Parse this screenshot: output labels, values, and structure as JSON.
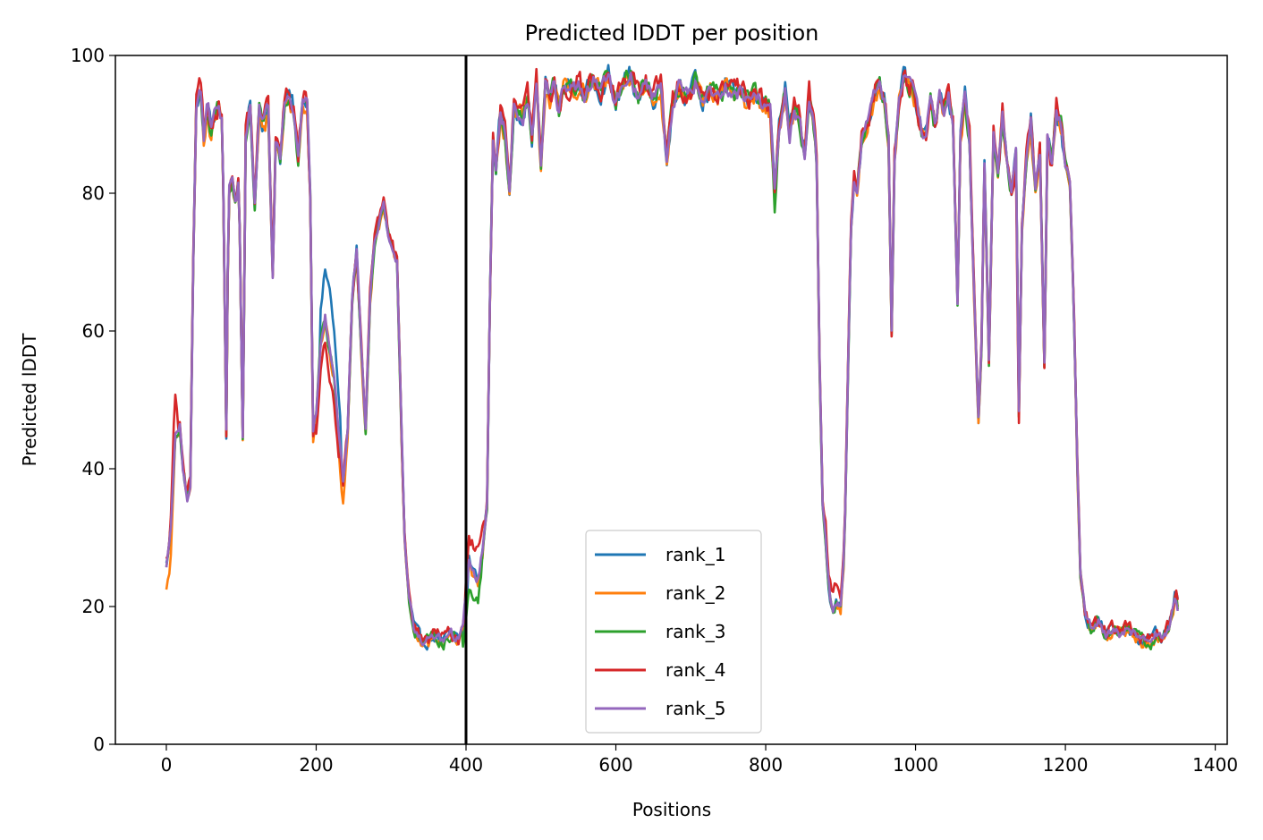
{
  "chart_data": {
    "type": "line",
    "title": "Predicted lDDT per position",
    "xlabel": "Positions",
    "ylabel": "Predicted lDDT",
    "xlim": [
      -68,
      1416
    ],
    "ylim": [
      0,
      100
    ],
    "xticks": [
      0,
      200,
      400,
      600,
      800,
      1000,
      1200,
      1400
    ],
    "yticks": [
      0,
      20,
      40,
      60,
      80,
      100
    ],
    "vline": 400,
    "legend_position": "bottom-center",
    "grid": false,
    "base_profile": [
      [
        0,
        26
      ],
      [
        5,
        30
      ],
      [
        12,
        45
      ],
      [
        18,
        46
      ],
      [
        22,
        40
      ],
      [
        28,
        36
      ],
      [
        32,
        38
      ],
      [
        36,
        70
      ],
      [
        40,
        93
      ],
      [
        45,
        95
      ],
      [
        50,
        88
      ],
      [
        55,
        93
      ],
      [
        60,
        89
      ],
      [
        65,
        92
      ],
      [
        70,
        93
      ],
      [
        75,
        90
      ],
      [
        80,
        45
      ],
      [
        83,
        80
      ],
      [
        88,
        82
      ],
      [
        93,
        78
      ],
      [
        97,
        82
      ],
      [
        102,
        45
      ],
      [
        106,
        88
      ],
      [
        112,
        93
      ],
      [
        118,
        78
      ],
      [
        124,
        92
      ],
      [
        130,
        90
      ],
      [
        136,
        92
      ],
      [
        142,
        68
      ],
      [
        146,
        88
      ],
      [
        152,
        85
      ],
      [
        158,
        93
      ],
      [
        164,
        94
      ],
      [
        170,
        92
      ],
      [
        176,
        85
      ],
      [
        182,
        94
      ],
      [
        188,
        93
      ],
      [
        192,
        80
      ],
      [
        196,
        45
      ],
      [
        200,
        48
      ],
      [
        206,
        58
      ],
      [
        212,
        62
      ],
      [
        218,
        57
      ],
      [
        224,
        53
      ],
      [
        230,
        45
      ],
      [
        236,
        38
      ],
      [
        242,
        45
      ],
      [
        248,
        65
      ],
      [
        254,
        72
      ],
      [
        260,
        58
      ],
      [
        266,
        46
      ],
      [
        272,
        65
      ],
      [
        278,
        73
      ],
      [
        284,
        76
      ],
      [
        290,
        79
      ],
      [
        296,
        74
      ],
      [
        302,
        72
      ],
      [
        308,
        70
      ],
      [
        314,
        45
      ],
      [
        318,
        30
      ],
      [
        323,
        22
      ],
      [
        330,
        17
      ],
      [
        340,
        15
      ],
      [
        350,
        15
      ],
      [
        360,
        16
      ],
      [
        370,
        15
      ],
      [
        380,
        16
      ],
      [
        390,
        15
      ],
      [
        396,
        17
      ],
      [
        400,
        22
      ],
      [
        404,
        27
      ],
      [
        410,
        25
      ],
      [
        416,
        24
      ],
      [
        422,
        28
      ],
      [
        428,
        35
      ],
      [
        432,
        65
      ],
      [
        436,
        88
      ],
      [
        440,
        84
      ],
      [
        446,
        92
      ],
      [
        452,
        89
      ],
      [
        458,
        80
      ],
      [
        464,
        93
      ],
      [
        470,
        92
      ],
      [
        476,
        91
      ],
      [
        482,
        94
      ],
      [
        488,
        88
      ],
      [
        494,
        96
      ],
      [
        500,
        84
      ],
      [
        506,
        96
      ],
      [
        512,
        94
      ],
      [
        518,
        96
      ],
      [
        524,
        92
      ],
      [
        530,
        96
      ],
      [
        540,
        95
      ],
      [
        550,
        96
      ],
      [
        560,
        94
      ],
      [
        570,
        97
      ],
      [
        580,
        95
      ],
      [
        590,
        97
      ],
      [
        600,
        93
      ],
      [
        610,
        96
      ],
      [
        620,
        97
      ],
      [
        630,
        94
      ],
      [
        640,
        96
      ],
      [
        650,
        94
      ],
      [
        660,
        96
      ],
      [
        668,
        85
      ],
      [
        676,
        93
      ],
      [
        686,
        96
      ],
      [
        696,
        94
      ],
      [
        706,
        96
      ],
      [
        716,
        93
      ],
      [
        726,
        95
      ],
      [
        736,
        94
      ],
      [
        746,
        96
      ],
      [
        756,
        94
      ],
      [
        766,
        95
      ],
      [
        776,
        93
      ],
      [
        786,
        95
      ],
      [
        796,
        93
      ],
      [
        806,
        92
      ],
      [
        812,
        80
      ],
      [
        818,
        90
      ],
      [
        826,
        95
      ],
      [
        832,
        88
      ],
      [
        838,
        92
      ],
      [
        846,
        90
      ],
      [
        852,
        86
      ],
      [
        858,
        94
      ],
      [
        864,
        90
      ],
      [
        868,
        84
      ],
      [
        872,
        55
      ],
      [
        876,
        35
      ],
      [
        880,
        30
      ],
      [
        885,
        22
      ],
      [
        890,
        20
      ],
      [
        895,
        21
      ],
      [
        900,
        20
      ],
      [
        905,
        28
      ],
      [
        910,
        55
      ],
      [
        914,
        75
      ],
      [
        918,
        82
      ],
      [
        922,
        80
      ],
      [
        928,
        88
      ],
      [
        934,
        90
      ],
      [
        940,
        92
      ],
      [
        946,
        95
      ],
      [
        952,
        96
      ],
      [
        958,
        94
      ],
      [
        964,
        88
      ],
      [
        968,
        60
      ],
      [
        972,
        85
      ],
      [
        978,
        93
      ],
      [
        984,
        97
      ],
      [
        990,
        96
      ],
      [
        996,
        95
      ],
      [
        1002,
        92
      ],
      [
        1008,
        89
      ],
      [
        1014,
        88
      ],
      [
        1020,
        94
      ],
      [
        1026,
        90
      ],
      [
        1032,
        94
      ],
      [
        1038,
        92
      ],
      [
        1044,
        94
      ],
      [
        1050,
        90
      ],
      [
        1056,
        64
      ],
      [
        1060,
        88
      ],
      [
        1066,
        94
      ],
      [
        1072,
        88
      ],
      [
        1078,
        66
      ],
      [
        1084,
        47
      ],
      [
        1088,
        58
      ],
      [
        1092,
        84
      ],
      [
        1098,
        56
      ],
      [
        1104,
        88
      ],
      [
        1110,
        83
      ],
      [
        1116,
        92
      ],
      [
        1122,
        85
      ],
      [
        1128,
        80
      ],
      [
        1134,
        86
      ],
      [
        1138,
        48
      ],
      [
        1142,
        75
      ],
      [
        1148,
        85
      ],
      [
        1154,
        91
      ],
      [
        1160,
        80
      ],
      [
        1166,
        86
      ],
      [
        1172,
        55
      ],
      [
        1176,
        88
      ],
      [
        1182,
        84
      ],
      [
        1188,
        92
      ],
      [
        1194,
        90
      ],
      [
        1200,
        84
      ],
      [
        1206,
        82
      ],
      [
        1212,
        60
      ],
      [
        1216,
        40
      ],
      [
        1220,
        25
      ],
      [
        1226,
        19
      ],
      [
        1234,
        17
      ],
      [
        1244,
        18
      ],
      [
        1254,
        16
      ],
      [
        1264,
        17
      ],
      [
        1274,
        16
      ],
      [
        1284,
        17
      ],
      [
        1294,
        16
      ],
      [
        1304,
        15
      ],
      [
        1314,
        15
      ],
      [
        1322,
        16
      ],
      [
        1330,
        15
      ],
      [
        1338,
        17
      ],
      [
        1344,
        20
      ],
      [
        1347,
        22
      ],
      [
        1350,
        20
      ]
    ],
    "series": [
      {
        "name": "rank_1",
        "color": "#1f77b4",
        "offset": 0.0,
        "jitter": 0.8,
        "bumps": [
          [
            205,
            232,
            9
          ],
          [
            395,
            403,
            -3
          ]
        ]
      },
      {
        "name": "rank_2",
        "color": "#ff7f0e",
        "offset": -0.4,
        "jitter": 0.8,
        "bumps": [
          [
            0,
            10,
            -5
          ],
          [
            230,
            240,
            -3
          ]
        ]
      },
      {
        "name": "rank_3",
        "color": "#2ca02c",
        "offset": -0.2,
        "jitter": 0.8,
        "bumps": [
          [
            395,
            420,
            -4
          ],
          [
            810,
            815,
            -2
          ]
        ]
      },
      {
        "name": "rank_4",
        "color": "#d62728",
        "offset": 0.3,
        "jitter": 0.9,
        "bumps": [
          [
            8,
            14,
            6
          ],
          [
            200,
            230,
            -5
          ],
          [
            400,
            425,
            4
          ],
          [
            880,
            905,
            2
          ],
          [
            1130,
            1140,
            -3
          ]
        ]
      },
      {
        "name": "rank_5",
        "color": "#9467bd",
        "offset": 0.0,
        "jitter": 0.6,
        "bumps": []
      }
    ]
  }
}
